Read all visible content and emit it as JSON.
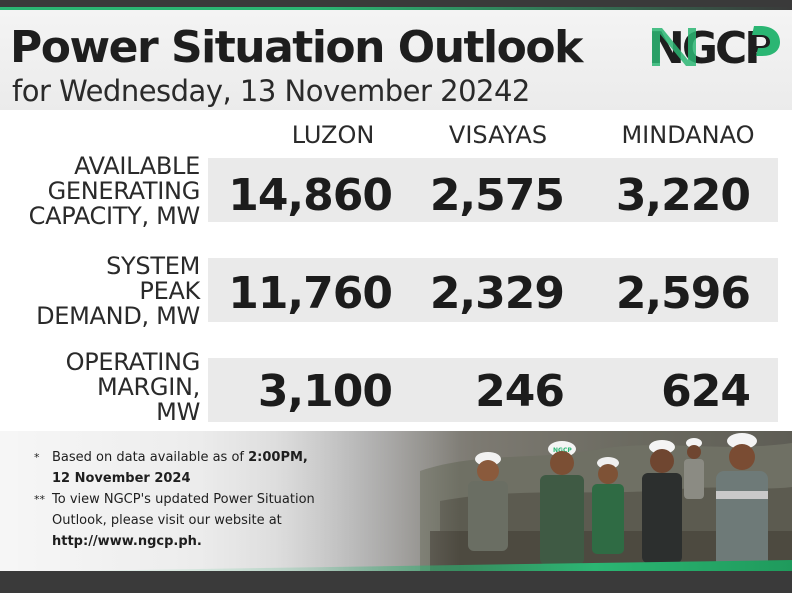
{
  "header": {
    "title": "Power Situation Outlook",
    "subtitle": "for Wednesday, 13 November 20242",
    "logo_text": "NGCP"
  },
  "colors": {
    "brand_green": "#2bb673",
    "dark": "#1e1e1e",
    "band": "#eaeaea",
    "strip": "#3a3a3a"
  },
  "columns": [
    "LUZON",
    "VISAYAS",
    "MINDANAO"
  ],
  "rows": [
    {
      "label_lines": [
        "AVAILABLE",
        "GENERATING",
        "CAPACITY, MW"
      ],
      "values": [
        "14,860",
        "2,575",
        "3,220"
      ]
    },
    {
      "label_lines": [
        "SYSTEM",
        "PEAK",
        "DEMAND, MW"
      ],
      "values": [
        "11,760",
        "2,329",
        "2,596"
      ]
    },
    {
      "label_lines": [
        "OPERATING",
        "MARGIN,",
        "MW"
      ],
      "values": [
        "3,100",
        "246",
        "624"
      ]
    }
  ],
  "notes": {
    "note1_mark": "*",
    "note1_text": "Based on data available as of ",
    "note1_bold": "2:00PM,",
    "note1_line2": "12 November 2024",
    "note2_mark": "**",
    "note2_text": "To view NGCP's updated Power Situation Outlook, please visit our website at",
    "note2_url": "http://www.ngcp.ph."
  },
  "photo": {
    "hardhat_label": "NGCP"
  }
}
